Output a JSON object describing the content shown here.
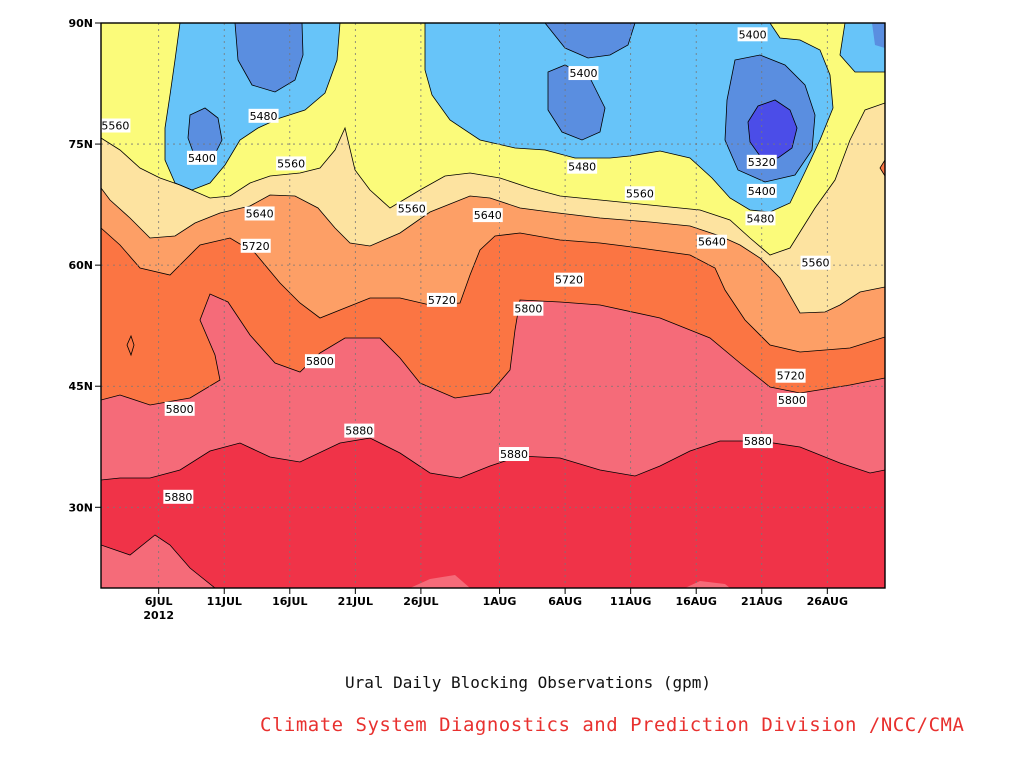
{
  "chart_data": {
    "type": "contour",
    "title": "Ural Daily Blocking Observations (gpm)",
    "credit": "Climate System Diagnostics and Prediction Division /NCC/CMA",
    "x_ticks": [
      {
        "label": "6JUL",
        "sub": "2012",
        "day": 6
      },
      {
        "label": "11JUL",
        "day": 11
      },
      {
        "label": "16JUL",
        "day": 16
      },
      {
        "label": "21JUL",
        "day": 21
      },
      {
        "label": "26JUL",
        "day": 26
      },
      {
        "label": "1AUG",
        "day": 32
      },
      {
        "label": "6AUG",
        "day": 37
      },
      {
        "label": "11AUG",
        "day": 42
      },
      {
        "label": "16AUG",
        "day": 47
      },
      {
        "label": "21AUG",
        "day": 52
      },
      {
        "label": "26AUG",
        "day": 57
      }
    ],
    "y_ticks": [
      {
        "label": "30N",
        "lat": 30
      },
      {
        "label": "45N",
        "lat": 45
      },
      {
        "label": "60N",
        "lat": 60
      },
      {
        "label": "75N",
        "lat": 75
      },
      {
        "label": "90N",
        "lat": 90
      }
    ],
    "x_range_days": [
      1.6,
      61.4
    ],
    "y_range_lat": [
      20,
      90
    ],
    "contour_levels": [
      5320,
      5400,
      5480,
      5560,
      5640,
      5720,
      5800,
      5880
    ],
    "fill_colors": {
      "below_5320": "#4b4de8",
      "5320_5400": "#5a8ee0",
      "5400_5480": "#67c4f9",
      "5480_5560": "#fbfb7a",
      "5560_5640": "#fde3a0",
      "5640_5720": "#fd9f66",
      "5720_5800": "#fb7543",
      "5800_5880": "#f56b79",
      "above_5880": "#f03348"
    },
    "contour_labels": [
      {
        "text": "5400",
        "day": 9.3,
        "lat": 73.3
      },
      {
        "text": "5480",
        "day": 14.0,
        "lat": 78.5
      },
      {
        "text": "5560",
        "day": 16.1,
        "lat": 72.6
      },
      {
        "text": "5560",
        "day": 2.7,
        "lat": 77.3
      },
      {
        "text": "5640",
        "day": 13.7,
        "lat": 66.4
      },
      {
        "text": "5720",
        "day": 13.4,
        "lat": 62.4
      },
      {
        "text": "5560",
        "day": 25.3,
        "lat": 67.0
      },
      {
        "text": "5640",
        "day": 31.1,
        "lat": 66.2
      },
      {
        "text": "5720",
        "day": 27.6,
        "lat": 55.7
      },
      {
        "text": "5800",
        "day": 18.3,
        "lat": 48.1
      },
      {
        "text": "5800",
        "day": 7.6,
        "lat": 42.2
      },
      {
        "text": "5880",
        "day": 21.3,
        "lat": 39.5
      },
      {
        "text": "5880",
        "day": 7.5,
        "lat": 31.3
      },
      {
        "text": "5880",
        "day": 33.1,
        "lat": 36.6
      },
      {
        "text": "5800",
        "day": 34.2,
        "lat": 54.6
      },
      {
        "text": "5720",
        "day": 37.3,
        "lat": 58.2
      },
      {
        "text": "5400",
        "day": 38.4,
        "lat": 83.8
      },
      {
        "text": "5480",
        "day": 38.3,
        "lat": 72.2
      },
      {
        "text": "5560",
        "day": 42.7,
        "lat": 68.9
      },
      {
        "text": "5640",
        "day": 48.2,
        "lat": 62.9
      },
      {
        "text": "5400",
        "day": 51.3,
        "lat": 88.6
      },
      {
        "text": "5320",
        "day": 52.0,
        "lat": 72.8
      },
      {
        "text": "5400",
        "day": 52.0,
        "lat": 69.2
      },
      {
        "text": "5480",
        "day": 51.9,
        "lat": 65.8
      },
      {
        "text": "5560",
        "day": 56.1,
        "lat": 60.3
      },
      {
        "text": "5720",
        "day": 54.2,
        "lat": 46.3
      },
      {
        "text": "5800",
        "day": 54.3,
        "lat": 43.3
      },
      {
        "text": "5880",
        "day": 51.7,
        "lat": 38.2
      }
    ]
  },
  "caption": {
    "title": "Ural Daily Blocking Observations (gpm)",
    "credit": "Climate System Diagnostics and Prediction Division /NCC/CMA"
  }
}
